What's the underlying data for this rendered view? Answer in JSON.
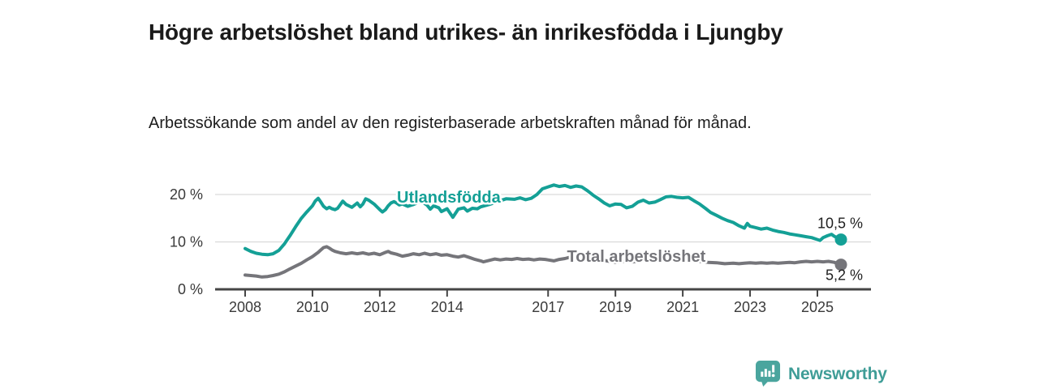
{
  "header": {
    "title": "Högre arbetslöshet bland utrikes- än inrikesfödda i Ljungby",
    "subtitle": "Arbetssökande som andel av den registerbaserade arbetskraften månad för månad."
  },
  "chart_data": {
    "type": "line",
    "title": "Högre arbetslöshet bland utrikes- än inrikesfödda i Ljungby",
    "subtitle": "Arbetssökande som andel av den registerbaserade arbetskraften månad för månad.",
    "x_unit": "year",
    "xlim": [
      2008,
      2025.9
    ],
    "ylim": [
      0,
      24
    ],
    "grid": "horizontal-only",
    "legend_position": "inline-labels-on-lines",
    "y_ticks": [
      {
        "value": 0,
        "label": "0 %"
      },
      {
        "value": 10,
        "label": "10 %"
      },
      {
        "value": 20,
        "label": "20 %"
      }
    ],
    "x_ticks": [
      {
        "value": 2008,
        "label": "2008"
      },
      {
        "value": 2010,
        "label": "2010"
      },
      {
        "value": 2012,
        "label": "2012"
      },
      {
        "value": 2014,
        "label": "2014"
      },
      {
        "value": 2017,
        "label": "2017"
      },
      {
        "value": 2019,
        "label": "2019"
      },
      {
        "value": 2021,
        "label": "2021"
      },
      {
        "value": 2023,
        "label": "2023"
      },
      {
        "value": 2025,
        "label": "2025"
      }
    ],
    "series": [
      {
        "name": "Utlandsfödda",
        "color": "#14a096",
        "label_pos": {
          "x": 2014.05,
          "y": 19.5
        },
        "end_value": 10.5,
        "end_label": "10,5 %",
        "points": [
          [
            2008.0,
            8.6
          ],
          [
            2008.17,
            8.0
          ],
          [
            2008.33,
            7.6
          ],
          [
            2008.5,
            7.4
          ],
          [
            2008.67,
            7.3
          ],
          [
            2008.83,
            7.5
          ],
          [
            2009.0,
            8.2
          ],
          [
            2009.17,
            9.6
          ],
          [
            2009.33,
            11.3
          ],
          [
            2009.5,
            13.2
          ],
          [
            2009.67,
            15.0
          ],
          [
            2009.83,
            16.3
          ],
          [
            2010.0,
            17.6
          ],
          [
            2010.08,
            18.6
          ],
          [
            2010.17,
            19.2
          ],
          [
            2010.25,
            18.4
          ],
          [
            2010.33,
            17.5
          ],
          [
            2010.42,
            17.0
          ],
          [
            2010.5,
            17.3
          ],
          [
            2010.58,
            17.0
          ],
          [
            2010.67,
            16.8
          ],
          [
            2010.75,
            17.1
          ],
          [
            2010.9,
            18.6
          ],
          [
            2011.0,
            17.9
          ],
          [
            2011.17,
            17.3
          ],
          [
            2011.33,
            18.2
          ],
          [
            2011.42,
            17.4
          ],
          [
            2011.5,
            18.0
          ],
          [
            2011.58,
            19.1
          ],
          [
            2011.67,
            18.8
          ],
          [
            2011.83,
            18.0
          ],
          [
            2012.0,
            16.8
          ],
          [
            2012.08,
            16.3
          ],
          [
            2012.17,
            16.8
          ],
          [
            2012.25,
            17.6
          ],
          [
            2012.33,
            18.2
          ],
          [
            2012.42,
            18.5
          ],
          [
            2012.5,
            18.2
          ],
          [
            2012.58,
            17.8
          ],
          [
            2012.67,
            18.0
          ],
          [
            2012.83,
            17.5
          ],
          [
            2013.0,
            17.9
          ],
          [
            2013.1,
            18.2
          ],
          [
            2013.25,
            18.5
          ],
          [
            2013.4,
            17.8
          ],
          [
            2013.5,
            16.9
          ],
          [
            2013.6,
            17.6
          ],
          [
            2013.75,
            17.2
          ],
          [
            2013.83,
            16.4
          ],
          [
            2014.0,
            17.0
          ],
          [
            2014.17,
            15.2
          ],
          [
            2014.33,
            16.9
          ],
          [
            2014.5,
            17.2
          ],
          [
            2014.6,
            16.5
          ],
          [
            2014.75,
            17.1
          ],
          [
            2014.9,
            17.0
          ],
          [
            2015.0,
            17.4
          ],
          [
            2015.25,
            17.9
          ],
          [
            2015.5,
            18.5
          ],
          [
            2015.75,
            19.1
          ],
          [
            2016.0,
            19.0
          ],
          [
            2016.17,
            19.3
          ],
          [
            2016.33,
            18.9
          ],
          [
            2016.5,
            19.2
          ],
          [
            2016.67,
            20.0
          ],
          [
            2016.83,
            21.2
          ],
          [
            2017.0,
            21.6
          ],
          [
            2017.17,
            22.0
          ],
          [
            2017.33,
            21.7
          ],
          [
            2017.5,
            21.9
          ],
          [
            2017.67,
            21.5
          ],
          [
            2017.83,
            21.8
          ],
          [
            2018.0,
            21.6
          ],
          [
            2018.17,
            20.8
          ],
          [
            2018.33,
            19.9
          ],
          [
            2018.5,
            19.1
          ],
          [
            2018.67,
            18.2
          ],
          [
            2018.83,
            17.6
          ],
          [
            2019.0,
            18.0
          ],
          [
            2019.17,
            17.9
          ],
          [
            2019.33,
            17.2
          ],
          [
            2019.5,
            17.5
          ],
          [
            2019.67,
            18.4
          ],
          [
            2019.83,
            18.8
          ],
          [
            2020.0,
            18.2
          ],
          [
            2020.17,
            18.4
          ],
          [
            2020.33,
            18.9
          ],
          [
            2020.5,
            19.5
          ],
          [
            2020.67,
            19.6
          ],
          [
            2020.83,
            19.4
          ],
          [
            2021.0,
            19.3
          ],
          [
            2021.17,
            19.4
          ],
          [
            2021.33,
            18.7
          ],
          [
            2021.5,
            18.0
          ],
          [
            2021.67,
            17.1
          ],
          [
            2021.83,
            16.2
          ],
          [
            2022.0,
            15.6
          ],
          [
            2022.17,
            15.0
          ],
          [
            2022.33,
            14.5
          ],
          [
            2022.5,
            14.1
          ],
          [
            2022.67,
            13.4
          ],
          [
            2022.83,
            12.9
          ],
          [
            2022.92,
            13.9
          ],
          [
            2023.0,
            13.3
          ],
          [
            2023.17,
            13.0
          ],
          [
            2023.33,
            12.7
          ],
          [
            2023.5,
            12.9
          ],
          [
            2023.67,
            12.5
          ],
          [
            2023.83,
            12.2
          ],
          [
            2024.0,
            12.0
          ],
          [
            2024.17,
            11.7
          ],
          [
            2024.33,
            11.5
          ],
          [
            2024.5,
            11.3
          ],
          [
            2024.67,
            11.1
          ],
          [
            2024.83,
            10.9
          ],
          [
            2025.0,
            10.5
          ],
          [
            2025.08,
            10.3
          ],
          [
            2025.17,
            10.9
          ],
          [
            2025.3,
            11.3
          ],
          [
            2025.42,
            11.6
          ],
          [
            2025.5,
            11.2
          ],
          [
            2025.6,
            10.8
          ],
          [
            2025.7,
            10.5
          ]
        ]
      },
      {
        "name": "Total arbetslöshet",
        "color": "#75757a",
        "label_pos": {
          "x": 2019.62,
          "y": 7.0
        },
        "end_value": 5.2,
        "end_label": "5,2 %",
        "points": [
          [
            2008.0,
            3.0
          ],
          [
            2008.17,
            2.9
          ],
          [
            2008.33,
            2.8
          ],
          [
            2008.5,
            2.6
          ],
          [
            2008.67,
            2.7
          ],
          [
            2008.83,
            2.9
          ],
          [
            2009.0,
            3.2
          ],
          [
            2009.17,
            3.7
          ],
          [
            2009.33,
            4.3
          ],
          [
            2009.5,
            4.9
          ],
          [
            2009.67,
            5.5
          ],
          [
            2009.83,
            6.2
          ],
          [
            2010.0,
            6.9
          ],
          [
            2010.17,
            7.8
          ],
          [
            2010.25,
            8.3
          ],
          [
            2010.33,
            8.8
          ],
          [
            2010.42,
            9.0
          ],
          [
            2010.5,
            8.7
          ],
          [
            2010.58,
            8.3
          ],
          [
            2010.67,
            8.0
          ],
          [
            2010.83,
            7.7
          ],
          [
            2011.0,
            7.5
          ],
          [
            2011.17,
            7.7
          ],
          [
            2011.33,
            7.5
          ],
          [
            2011.5,
            7.7
          ],
          [
            2011.67,
            7.4
          ],
          [
            2011.83,
            7.6
          ],
          [
            2012.0,
            7.3
          ],
          [
            2012.17,
            7.8
          ],
          [
            2012.25,
            8.0
          ],
          [
            2012.33,
            7.7
          ],
          [
            2012.5,
            7.4
          ],
          [
            2012.67,
            7.0
          ],
          [
            2012.83,
            7.2
          ],
          [
            2013.0,
            7.5
          ],
          [
            2013.17,
            7.3
          ],
          [
            2013.33,
            7.6
          ],
          [
            2013.5,
            7.3
          ],
          [
            2013.67,
            7.5
          ],
          [
            2013.83,
            7.2
          ],
          [
            2014.0,
            7.3
          ],
          [
            2014.17,
            7.0
          ],
          [
            2014.33,
            6.8
          ],
          [
            2014.5,
            7.1
          ],
          [
            2014.67,
            6.7
          ],
          [
            2014.83,
            6.3
          ],
          [
            2015.0,
            6.0
          ],
          [
            2015.08,
            5.8
          ],
          [
            2015.25,
            6.1
          ],
          [
            2015.42,
            6.4
          ],
          [
            2015.58,
            6.2
          ],
          [
            2015.75,
            6.4
          ],
          [
            2015.92,
            6.3
          ],
          [
            2016.08,
            6.5
          ],
          [
            2016.25,
            6.3
          ],
          [
            2016.42,
            6.4
          ],
          [
            2016.58,
            6.2
          ],
          [
            2016.75,
            6.4
          ],
          [
            2016.92,
            6.3
          ],
          [
            2017.0,
            6.2
          ],
          [
            2017.17,
            6.0
          ],
          [
            2017.33,
            6.3
          ],
          [
            2017.5,
            6.5
          ],
          [
            2017.67,
            6.8
          ],
          [
            2017.83,
            6.6
          ],
          [
            2018.0,
            6.4
          ],
          [
            2018.17,
            6.2
          ],
          [
            2018.33,
            6.0
          ],
          [
            2018.5,
            5.9
          ],
          [
            2018.67,
            6.1
          ],
          [
            2018.83,
            5.9
          ],
          [
            2019.0,
            5.7
          ],
          [
            2019.25,
            5.9
          ],
          [
            2019.5,
            5.8
          ],
          [
            2019.75,
            6.0
          ],
          [
            2020.0,
            6.2
          ],
          [
            2020.25,
            6.6
          ],
          [
            2020.5,
            6.8
          ],
          [
            2020.75,
            6.6
          ],
          [
            2021.0,
            6.4
          ],
          [
            2021.25,
            6.1
          ],
          [
            2021.5,
            5.9
          ],
          [
            2021.75,
            5.7
          ],
          [
            2022.0,
            5.6
          ],
          [
            2022.25,
            5.4
          ],
          [
            2022.5,
            5.5
          ],
          [
            2022.67,
            5.4
          ],
          [
            2022.83,
            5.5
          ],
          [
            2023.0,
            5.6
          ],
          [
            2023.17,
            5.5
          ],
          [
            2023.33,
            5.6
          ],
          [
            2023.5,
            5.5
          ],
          [
            2023.67,
            5.6
          ],
          [
            2023.83,
            5.5
          ],
          [
            2024.0,
            5.6
          ],
          [
            2024.17,
            5.7
          ],
          [
            2024.33,
            5.6
          ],
          [
            2024.5,
            5.8
          ],
          [
            2024.67,
            5.9
          ],
          [
            2024.83,
            5.8
          ],
          [
            2025.0,
            5.9
          ],
          [
            2025.17,
            5.8
          ],
          [
            2025.33,
            5.9
          ],
          [
            2025.5,
            5.7
          ],
          [
            2025.7,
            5.2
          ]
        ]
      }
    ]
  },
  "footer": {
    "brand": "Newsworthy",
    "logo_icon": "bar-chart-speech-bubble"
  },
  "colors": {
    "accent_teal": "#14a096",
    "series_gray": "#75757a",
    "brand_teal": "#3f9d97",
    "grid": "#d9d9d9",
    "axis": "#454545",
    "text": "#1a1a1a"
  }
}
